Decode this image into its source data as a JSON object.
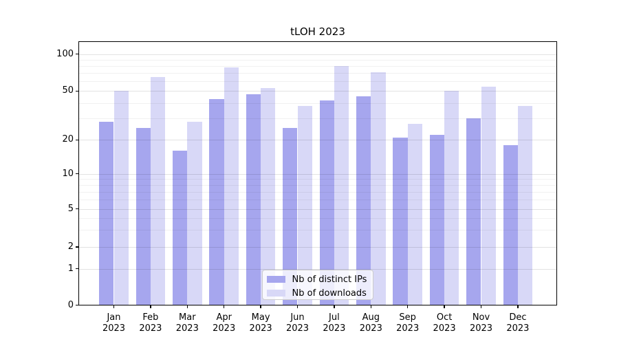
{
  "title": "tLOH 2023",
  "legend": {
    "items": [
      "Nb of distinct IPs",
      "Nb of downloads"
    ]
  },
  "chart_data": {
    "type": "bar",
    "title": "tLOH 2023",
    "year": "2023",
    "categories": [
      "Jan",
      "Feb",
      "Mar",
      "Apr",
      "May",
      "Jun",
      "Jul",
      "Aug",
      "Sep",
      "Oct",
      "Nov",
      "Dec"
    ],
    "series": [
      {
        "name": "Nb of distinct IPs",
        "color": "#a6a6ee",
        "values": [
          28,
          25,
          16,
          43,
          47,
          25,
          42,
          45,
          21,
          22,
          30,
          18
        ]
      },
      {
        "name": "Nb of downloads",
        "color": "#d8d8f7",
        "values": [
          50,
          65,
          28,
          78,
          53,
          38,
          80,
          71,
          27,
          50,
          54,
          38
        ]
      }
    ],
    "xlabel": "",
    "ylabel": "",
    "y_scale": "symlog (log above 1, linear 0-1)",
    "ylim": [
      0,
      120
    ],
    "y_ticks": [
      0,
      1,
      2,
      5,
      10,
      20,
      50,
      100
    ],
    "y_minor_ticks": [
      3,
      4,
      6,
      7,
      8,
      9,
      30,
      40,
      60,
      70,
      80,
      90
    ],
    "grid": "horizontal major and minor, light gray, drawn over bars",
    "legend_position": "lower center",
    "bar_colors": {
      "distinct_ips": "#a6a6ee",
      "downloads": "#d8d8f7"
    }
  }
}
